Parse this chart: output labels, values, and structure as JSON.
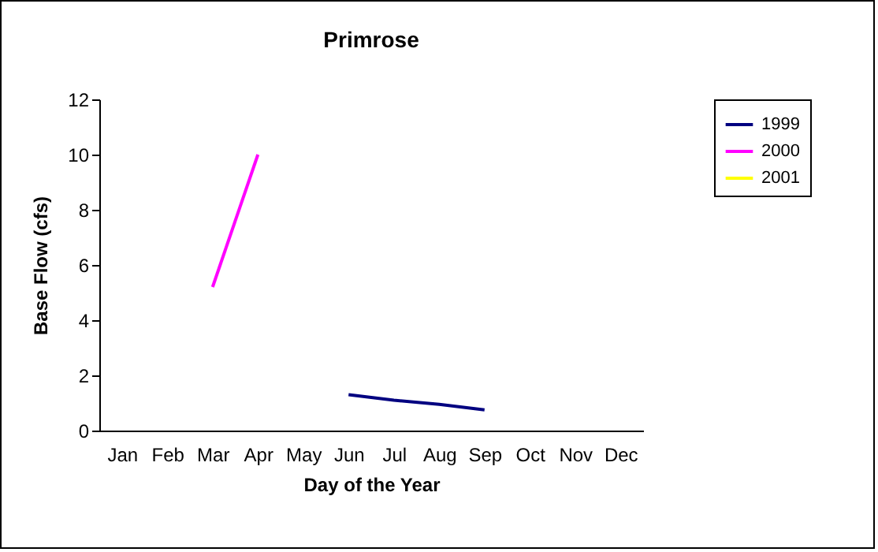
{
  "chart_data": {
    "type": "line",
    "title": "Primrose",
    "xlabel": "Day of the Year",
    "ylabel": "Base Flow (cfs)",
    "categories": [
      "Jan",
      "Feb",
      "Mar",
      "Apr",
      "May",
      "Jun",
      "Jul",
      "Aug",
      "Sep",
      "Oct",
      "Nov",
      "Dec"
    ],
    "ylim": [
      0,
      12
    ],
    "yticks": [
      0,
      2,
      4,
      6,
      8,
      10,
      12
    ],
    "grid": false,
    "legend": "right",
    "marker": "none",
    "line_style": "solid",
    "series": [
      {
        "name": "1999",
        "color": "#000080",
        "values": [
          null,
          null,
          null,
          null,
          null,
          1.3,
          1.1,
          0.95,
          0.75,
          null,
          null,
          null
        ]
      },
      {
        "name": "2000",
        "color": "#ff00ff",
        "values": [
          null,
          null,
          5.2,
          10.0,
          null,
          null,
          null,
          null,
          null,
          null,
          null,
          null
        ]
      },
      {
        "name": "2001",
        "color": "#ffff00",
        "values": [
          null,
          null,
          null,
          null,
          null,
          null,
          null,
          null,
          null,
          null,
          null,
          null
        ]
      }
    ]
  }
}
